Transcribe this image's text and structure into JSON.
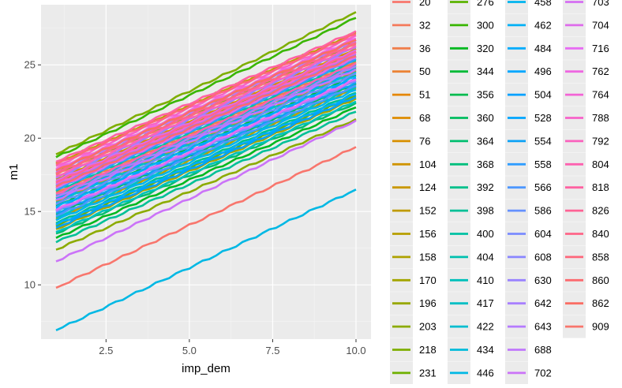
{
  "chart_data": {
    "type": "line",
    "xlabel": "imp_dem",
    "ylabel": "m1",
    "xlim": [
      0.55,
      10.45
    ],
    "ylim": [
      6.3,
      29.1
    ],
    "x_ticks": [
      2.5,
      5.0,
      7.5,
      10.0
    ],
    "x_tick_labels": [
      "2.5",
      "5.0",
      "7.5",
      "10.0"
    ],
    "y_ticks": [
      10,
      15,
      20,
      25
    ],
    "y_tick_labels": [
      "10",
      "15",
      "20",
      "25"
    ],
    "x_range": [
      1,
      10
    ],
    "grid": true,
    "panel_background": "#EBEBEB",
    "legend_position": "right",
    "series": [
      {
        "name": "20",
        "color": "#F8766D",
        "y_start": 17.5,
        "y_end": 26.4
      },
      {
        "name": "32",
        "color": "#F47A5B",
        "y_start": 16.9,
        "y_end": 25.8
      },
      {
        "name": "36",
        "color": "#F07E4B",
        "y_start": 16.3,
        "y_end": 25.2
      },
      {
        "name": "50",
        "color": "#EB8335",
        "y_start": 17.8,
        "y_end": 26.7
      },
      {
        "name": "51",
        "color": "#E58700",
        "y_start": 16.0,
        "y_end": 24.9
      },
      {
        "name": "68",
        "color": "#DE8C00",
        "y_start": 17.2,
        "y_end": 26.1
      },
      {
        "name": "76",
        "color": "#D89000",
        "y_start": 15.7,
        "y_end": 24.6
      },
      {
        "name": "104",
        "color": "#D09400",
        "y_start": 16.6,
        "y_end": 25.5
      },
      {
        "name": "124",
        "color": "#C99800",
        "y_start": 15.1,
        "y_end": 24.0
      },
      {
        "name": "152",
        "color": "#C09B00",
        "y_start": 18.3,
        "y_end": 27.2
      },
      {
        "name": "156",
        "color": "#B79F00",
        "y_start": 14.5,
        "y_end": 23.4
      },
      {
        "name": "158",
        "color": "#AEA200",
        "y_start": 17.0,
        "y_end": 25.9
      },
      {
        "name": "170",
        "color": "#A3A500",
        "y_start": 13.8,
        "y_end": 22.7
      },
      {
        "name": "196",
        "color": "#98A800",
        "y_start": 16.2,
        "y_end": 25.1
      },
      {
        "name": "203",
        "color": "#8CAB00",
        "y_start": 12.4,
        "y_end": 21.3
      },
      {
        "name": "218",
        "color": "#7EAE00",
        "y_start": 18.9,
        "y_end": 28.6
      },
      {
        "name": "231",
        "color": "#6FB000",
        "y_start": 14.0,
        "y_end": 22.9
      },
      {
        "name": "276",
        "color": "#5BB300",
        "y_start": 17.6,
        "y_end": 26.5
      },
      {
        "name": "300",
        "color": "#39B600",
        "y_start": 18.7,
        "y_end": 28.2
      },
      {
        "name": "320",
        "color": "#00B81F",
        "y_start": 13.2,
        "y_end": 22.1
      },
      {
        "name": "344",
        "color": "#00BA38",
        "y_start": 15.4,
        "y_end": 24.3
      },
      {
        "name": "356",
        "color": "#00BB4E",
        "y_start": 14.8,
        "y_end": 23.7
      },
      {
        "name": "360",
        "color": "#00BD5F",
        "y_start": 16.7,
        "y_end": 25.6
      },
      {
        "name": "364",
        "color": "#00BE6F",
        "y_start": 13.5,
        "y_end": 22.4
      },
      {
        "name": "368",
        "color": "#00BF7D",
        "y_start": 15.9,
        "y_end": 24.8
      },
      {
        "name": "392",
        "color": "#00C08B",
        "y_start": 14.2,
        "y_end": 23.1
      },
      {
        "name": "398",
        "color": "#00C097",
        "y_start": 12.9,
        "y_end": 21.8
      },
      {
        "name": "400",
        "color": "#00C1A3",
        "y_start": 16.4,
        "y_end": 25.3
      },
      {
        "name": "404",
        "color": "#00C0AF",
        "y_start": 15.0,
        "y_end": 23.9
      },
      {
        "name": "410",
        "color": "#00C0BA",
        "y_start": 13.6,
        "y_end": 22.5
      },
      {
        "name": "417",
        "color": "#00BFC4",
        "y_start": 14.6,
        "y_end": 23.5
      },
      {
        "name": "422",
        "color": "#00BDD0",
        "y_start": 15.6,
        "y_end": 24.5
      },
      {
        "name": "434",
        "color": "#00BBDA",
        "y_start": 16.1,
        "y_end": 25.0
      },
      {
        "name": "446",
        "color": "#00B8E4",
        "y_start": 6.9,
        "y_end": 16.5
      },
      {
        "name": "458",
        "color": "#00B4EF",
        "y_start": 14.4,
        "y_end": 23.3
      },
      {
        "name": "462",
        "color": "#00B0F6",
        "y_start": 15.3,
        "y_end": 24.2
      },
      {
        "name": "484",
        "color": "#00ACFC",
        "y_start": 14.1,
        "y_end": 23.0
      },
      {
        "name": "496",
        "color": "#00A7FF",
        "y_start": 15.8,
        "y_end": 24.7
      },
      {
        "name": "504",
        "color": "#00A1FF",
        "y_start": 13.9,
        "y_end": 22.8
      },
      {
        "name": "528",
        "color": "#00A5FF",
        "y_start": 15.2,
        "y_end": 24.1
      },
      {
        "name": "554",
        "color": "#0CA2F5",
        "y_start": 14.9,
        "y_end": 23.8
      },
      {
        "name": "558",
        "color": "#2F9DFF",
        "y_start": 16.5,
        "y_end": 25.4
      },
      {
        "name": "566",
        "color": "#4D97FF",
        "y_start": 14.7,
        "y_end": 23.6
      },
      {
        "name": "586",
        "color": "#6591FF",
        "y_start": 15.5,
        "y_end": 24.4
      },
      {
        "name": "604",
        "color": "#7A8BFF",
        "y_start": 16.8,
        "y_end": 25.7
      },
      {
        "name": "608",
        "color": "#8A86FF",
        "y_start": 15.0,
        "y_end": 23.9
      },
      {
        "name": "630",
        "color": "#9982FF",
        "y_start": 17.3,
        "y_end": 26.2
      },
      {
        "name": "642",
        "color": "#A87FFF",
        "y_start": 16.0,
        "y_end": 24.9
      },
      {
        "name": "643",
        "color": "#B57BFF",
        "y_start": 17.7,
        "y_end": 26.6
      },
      {
        "name": "688",
        "color": "#C077FD",
        "y_start": 15.8,
        "y_end": 24.7
      },
      {
        "name": "702",
        "color": "#CB73F8",
        "y_start": 11.6,
        "y_end": 21.2
      },
      {
        "name": "703",
        "color": "#D56FF2",
        "y_start": 17.1,
        "y_end": 26.0
      },
      {
        "name": "704",
        "color": "#DE6CEB",
        "y_start": 16.6,
        "y_end": 25.5
      },
      {
        "name": "716",
        "color": "#E76BF3",
        "y_start": 15.1,
        "y_end": 24.0
      },
      {
        "name": "762",
        "color": "#EE67E1",
        "y_start": 17.9,
        "y_end": 26.8
      },
      {
        "name": "764",
        "color": "#F364D6",
        "y_start": 16.9,
        "y_end": 25.8
      },
      {
        "name": "788",
        "color": "#F762CA",
        "y_start": 18.1,
        "y_end": 27.0
      },
      {
        "name": "792",
        "color": "#FA62BD",
        "y_start": 17.4,
        "y_end": 26.3
      },
      {
        "name": "804",
        "color": "#FD61B0",
        "y_start": 16.2,
        "y_end": 25.1
      },
      {
        "name": "818",
        "color": "#FF62A2",
        "y_start": 18.4,
        "y_end": 27.3
      },
      {
        "name": "826",
        "color": "#FF6395",
        "y_start": 17.0,
        "y_end": 25.9
      },
      {
        "name": "840",
        "color": "#FF6588",
        "y_start": 17.6,
        "y_end": 26.5
      },
      {
        "name": "858",
        "color": "#FE677B",
        "y_start": 18.2,
        "y_end": 27.1
      },
      {
        "name": "860",
        "color": "#FC6A6F",
        "y_start": 16.7,
        "y_end": 25.6
      },
      {
        "name": "862",
        "color": "#FA6E64",
        "y_start": 17.8,
        "y_end": 26.7
      },
      {
        "name": "909",
        "color": "#F8766D",
        "y_start": 9.8,
        "y_end": 19.4
      }
    ]
  },
  "legend": {
    "columns": [
      [
        "20",
        "32",
        "36",
        "50",
        "51",
        "68",
        "76",
        "104",
        "124",
        "152",
        "156",
        "158",
        "170",
        "196",
        "203",
        "218",
        "231"
      ],
      [
        "276",
        "300",
        "320",
        "344",
        "356",
        "360",
        "364",
        "368",
        "392",
        "398",
        "400",
        "404",
        "410",
        "417",
        "422",
        "434",
        "446"
      ],
      [
        "458",
        "462",
        "484",
        "496",
        "504",
        "528",
        "554",
        "558",
        "566",
        "586",
        "604",
        "608",
        "630",
        "642",
        "643",
        "688",
        "702"
      ],
      [
        "703",
        "704",
        "716",
        "762",
        "764",
        "788",
        "792",
        "804",
        "818",
        "826",
        "840",
        "858",
        "860",
        "862",
        "909"
      ]
    ]
  }
}
